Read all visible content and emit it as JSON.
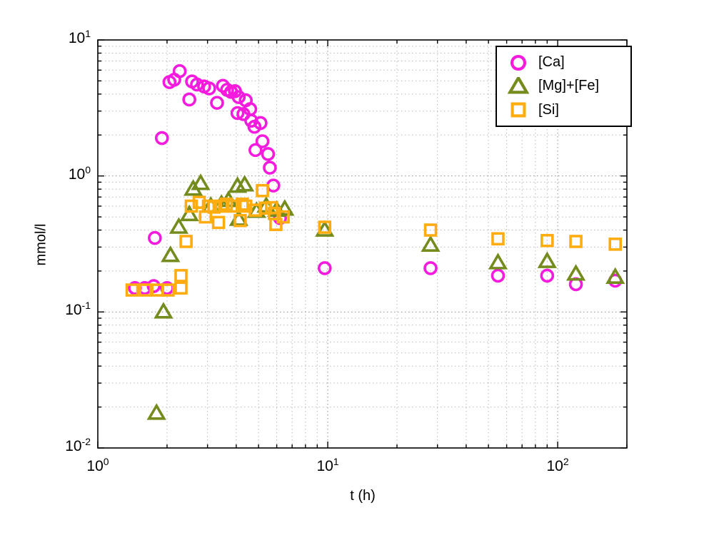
{
  "chart_data": {
    "type": "scatter",
    "title": "",
    "xlabel": "t (h)",
    "ylabel": "mmol/l",
    "xscale": "log",
    "yscale": "log",
    "xlim": [
      1,
      200
    ],
    "ylim": [
      0.01,
      10
    ],
    "grid": "major and minor, dotted",
    "legend_position": "top-right",
    "background": "#ffffff",
    "axis_color": "#000000",
    "grid_color_major": "#8f8f8f",
    "grid_color_minor": "#bababa",
    "series": [
      {
        "name": "[Ca]",
        "marker": "circle",
        "color": "#f41ade",
        "points": [
          [
            1.45,
            0.15
          ],
          [
            1.6,
            0.15
          ],
          [
            1.75,
            0.155
          ],
          [
            2.0,
            0.15
          ],
          [
            1.77,
            0.35
          ],
          [
            1.9,
            1.9
          ],
          [
            2.05,
            4.9
          ],
          [
            2.15,
            5.1
          ],
          [
            2.27,
            5.9
          ],
          [
            2.5,
            3.65
          ],
          [
            2.57,
            4.95
          ],
          [
            2.7,
            4.7
          ],
          [
            2.9,
            4.55
          ],
          [
            3.05,
            4.4
          ],
          [
            3.3,
            3.45
          ],
          [
            3.5,
            4.6
          ],
          [
            3.65,
            4.3
          ],
          [
            3.8,
            4.15
          ],
          [
            3.95,
            4.2
          ],
          [
            4.05,
            2.9
          ],
          [
            4.1,
            3.8
          ],
          [
            4.3,
            2.85
          ],
          [
            4.4,
            3.6
          ],
          [
            4.6,
            3.1
          ],
          [
            4.65,
            2.55
          ],
          [
            4.8,
            2.3
          ],
          [
            5.1,
            2.45
          ],
          [
            4.85,
            1.55
          ],
          [
            5.2,
            1.8
          ],
          [
            5.5,
            1.45
          ],
          [
            5.6,
            1.15
          ],
          [
            5.8,
            0.85
          ],
          [
            6.2,
            0.49
          ],
          [
            9.7,
            0.21
          ],
          [
            28,
            0.21
          ],
          [
            55,
            0.185
          ],
          [
            90,
            0.185
          ],
          [
            120,
            0.16
          ],
          [
            178,
            0.17
          ]
        ]
      },
      {
        "name": "[Mg]+[Fe]",
        "marker": "triangle",
        "color": "#748b1d",
        "points": [
          [
            1.8,
            0.018
          ],
          [
            1.93,
            0.1
          ],
          [
            2.07,
            0.26
          ],
          [
            2.25,
            0.42
          ],
          [
            2.5,
            0.52
          ],
          [
            2.6,
            0.8
          ],
          [
            2.8,
            0.88
          ],
          [
            3.1,
            0.6
          ],
          [
            3.45,
            0.62
          ],
          [
            3.7,
            0.66
          ],
          [
            4.05,
            0.84
          ],
          [
            4.35,
            0.86
          ],
          [
            4.1,
            0.48
          ],
          [
            4.9,
            0.55
          ],
          [
            5.4,
            0.6
          ],
          [
            6.0,
            0.56
          ],
          [
            6.5,
            0.57
          ],
          [
            9.7,
            0.4
          ],
          [
            28,
            0.31
          ],
          [
            55,
            0.23
          ],
          [
            90,
            0.235
          ],
          [
            120,
            0.19
          ],
          [
            178,
            0.18
          ]
        ]
      },
      {
        "name": "[Si]",
        "marker": "square",
        "color": "#ffac11",
        "points": [
          [
            1.41,
            0.145
          ],
          [
            1.61,
            0.145
          ],
          [
            1.82,
            0.145
          ],
          [
            2.02,
            0.145
          ],
          [
            2.3,
            0.15
          ],
          [
            2.3,
            0.185
          ],
          [
            2.42,
            0.33
          ],
          [
            2.55,
            0.6
          ],
          [
            2.76,
            0.64
          ],
          [
            2.94,
            0.5
          ],
          [
            3.03,
            0.6
          ],
          [
            3.2,
            0.59
          ],
          [
            3.35,
            0.455
          ],
          [
            3.45,
            0.6
          ],
          [
            3.62,
            0.62
          ],
          [
            3.9,
            0.6
          ],
          [
            4.16,
            0.47
          ],
          [
            4.25,
            0.62
          ],
          [
            4.4,
            0.6
          ],
          [
            4.84,
            0.56
          ],
          [
            5.2,
            0.78
          ],
          [
            5.35,
            0.58
          ],
          [
            5.7,
            0.585
          ],
          [
            5.86,
            0.53
          ],
          [
            5.95,
            0.44
          ],
          [
            6.4,
            0.5
          ],
          [
            9.7,
            0.42
          ],
          [
            28,
            0.4
          ],
          [
            55,
            0.345
          ],
          [
            90,
            0.335
          ],
          [
            120,
            0.33
          ],
          [
            178,
            0.315
          ]
        ]
      }
    ]
  }
}
